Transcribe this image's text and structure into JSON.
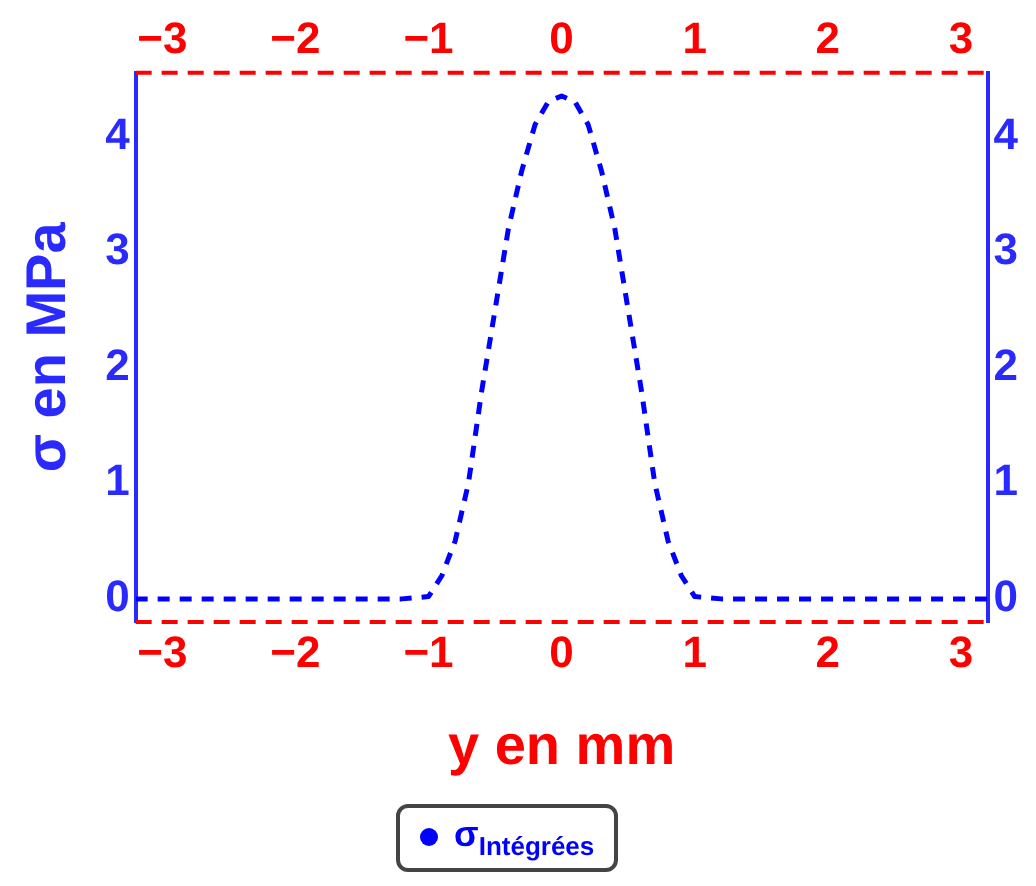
{
  "chart_data": {
    "type": "line",
    "xlabel": "y en mm",
    "ylabel": "σ en MPa",
    "xlim": [
      -3.2,
      3.2
    ],
    "xticks": [
      {
        "value": -3,
        "label": "−3"
      },
      {
        "value": -2,
        "label": "−2"
      },
      {
        "value": -1,
        "label": "−1"
      },
      0,
      1,
      2,
      3
    ],
    "x2lim": [
      -3.2,
      3.2
    ],
    "x2ticks": [
      {
        "value": -3,
        "label": "−3"
      },
      {
        "value": -2,
        "label": "−2"
      },
      {
        "value": -1,
        "label": "−1"
      },
      0,
      1,
      2,
      3
    ],
    "ylim": [
      -0.2,
      4.55
    ],
    "yticks": [
      0,
      1,
      2,
      3,
      4
    ],
    "y2lim": [
      -0.2,
      4.55
    ],
    "y2ticks": [
      0,
      1,
      2,
      3,
      4
    ],
    "grid": false,
    "legend": "bottom",
    "marker": "none",
    "line_style": "dashed",
    "series": [
      {
        "name": "σ$_{Intégrées}$",
        "color": "#0000ff",
        "x": [
          -3.2,
          -2,
          -1.2,
          -1,
          -0.9,
          -0.8,
          -0.7,
          -0.6,
          -0.5,
          -0.4,
          -0.3,
          -0.2,
          -0.1,
          0,
          0.1,
          0.2,
          0.3,
          0.4,
          0.5,
          0.6,
          0.7,
          0.8,
          0.9,
          1,
          1.2,
          2,
          3.2
        ],
        "values": [
          0,
          0,
          0,
          0.02,
          0.2,
          0.5,
          1.0,
          1.8,
          2.5,
          3.2,
          3.7,
          4.1,
          4.3,
          4.35,
          4.3,
          4.1,
          3.7,
          3.2,
          2.5,
          1.8,
          1.0,
          0.5,
          0.2,
          0.02,
          0,
          0,
          0
        ]
      }
    ]
  }
}
